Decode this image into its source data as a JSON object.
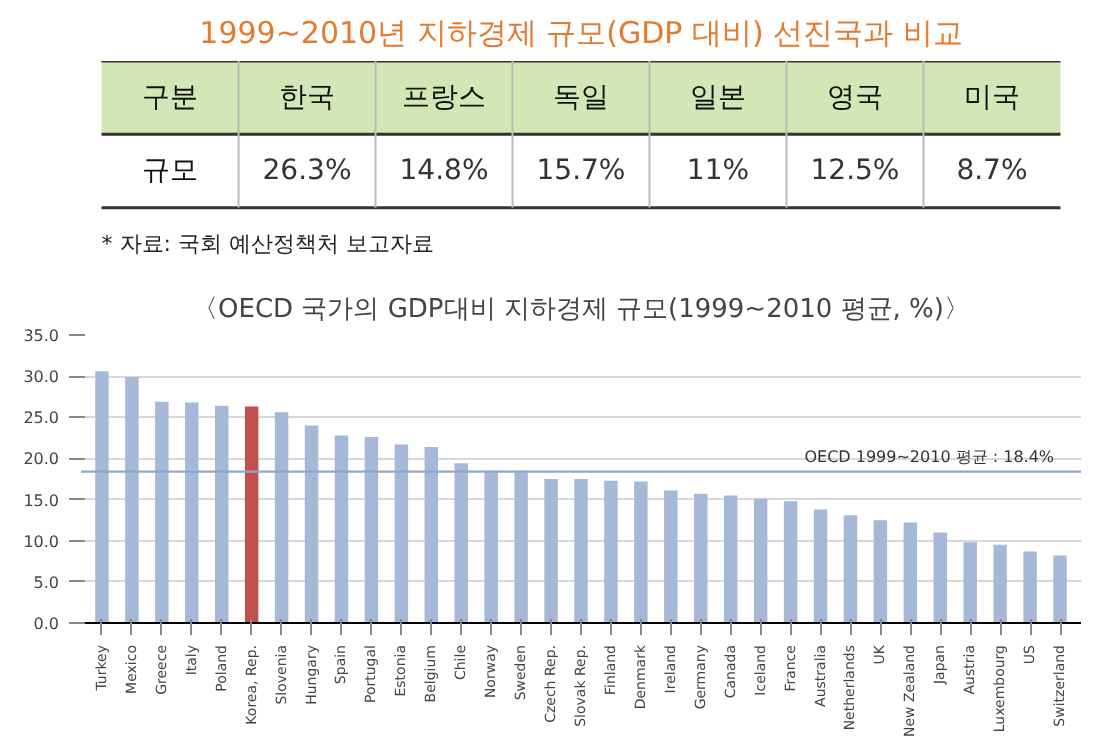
{
  "chart_data": [
    {
      "type": "other",
      "title": "1999~2010년 지하경제 규모(GDP 대비) 선진국과 비교",
      "xlabel": "구분",
      "ylabel": "규모",
      "categories": [
        "한국",
        "프랑스",
        "독일",
        "일본",
        "영국",
        "미국"
      ],
      "value_labels": [
        "26.3%",
        "14.8%",
        "15.7%",
        "11%",
        "12.5%",
        "8.7%"
      ],
      "colors": [
        "#d3e6b5",
        "#d3e6b5",
        "#d3e6b5",
        "#d3e6b5",
        "#d3e6b5",
        "#d3e6b5"
      ],
      "annotations": [
        "* 자료: 국회 예산정책처 보고자료"
      ]
    },
    {
      "type": "bar",
      "title": "〈OECD 국가의 GDP대비 지하경제 규모(1999~2010 평균, %)〉",
      "categories": [
        "Turkey",
        "Mexico",
        "Greece",
        "Italy",
        "Poland",
        "Korea, Rep.",
        "Slovenia",
        "Hungary",
        "Spain",
        "Portugal",
        "Estonia",
        "Belgium",
        "Chile",
        "Norway",
        "Sweden",
        "Czech Rep.",
        "Slovak Rep.",
        "Finland",
        "Denmark",
        "Ireland",
        "Germany",
        "Canada",
        "Iceland",
        "France",
        "Australia",
        "Netherlands",
        "UK",
        "New Zealand",
        "Japan",
        "Austria",
        "Luxembourg",
        "US",
        "Switzerland"
      ],
      "values": [
        30.6,
        29.9,
        26.9,
        26.8,
        26.4,
        26.3,
        25.6,
        24.0,
        22.8,
        22.6,
        21.7,
        21.4,
        19.4,
        18.5,
        18.5,
        17.5,
        17.5,
        17.3,
        17.2,
        16.1,
        15.7,
        15.5,
        15.1,
        14.8,
        13.8,
        13.1,
        12.5,
        12.2,
        11.0,
        9.8,
        9.5,
        8.7,
        8.2
      ],
      "colors": [
        "#a6b8d8",
        "#a6b8d8",
        "#a6b8d8",
        "#a6b8d8",
        "#a6b8d8",
        "#c0504d",
        "#a6b8d8",
        "#a6b8d8",
        "#a6b8d8",
        "#a6b8d8",
        "#a6b8d8",
        "#a6b8d8",
        "#a6b8d8",
        "#a6b8d8",
        "#a6b8d8",
        "#a6b8d8",
        "#a6b8d8",
        "#a6b8d8",
        "#a6b8d8",
        "#a6b8d8",
        "#a6b8d8",
        "#a6b8d8",
        "#a6b8d8",
        "#a6b8d8",
        "#a6b8d8",
        "#a6b8d8",
        "#a6b8d8",
        "#a6b8d8",
        "#a6b8d8",
        "#a6b8d8",
        "#a6b8d8",
        "#a6b8d8",
        "#a6b8d8"
      ],
      "ylim": [
        0,
        35
      ],
      "yticks": [
        {
          "value": 0,
          "label": "0.0"
        },
        {
          "value": 5,
          "label": "5.0"
        },
        {
          "value": 10,
          "label": "10.0"
        },
        {
          "value": 15,
          "label": "15.0"
        },
        {
          "value": 20,
          "label": "20.0"
        },
        {
          "value": 25,
          "label": "25.0"
        },
        {
          "value": 30,
          "label": "30.0"
        },
        {
          "value": 35,
          "label": "35.0"
        }
      ],
      "grid": "y",
      "ref_lines": [
        {
          "axis": "y",
          "value": 18.4,
          "label": "OECD 1999~2010 평균 : 18.4%",
          "color": "#8fa8c8"
        }
      ]
    }
  ]
}
